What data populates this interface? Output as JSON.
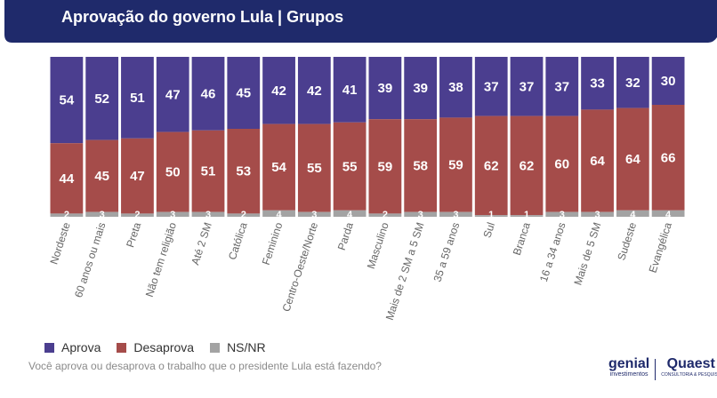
{
  "header": {
    "title": "Aprovação do governo Lula | Grupos"
  },
  "colors": {
    "aprova": "#4b3e8f",
    "desaprova": "#a54c4a",
    "nsnr": "#a3a3a3",
    "header": "#1f2a6b"
  },
  "chart_data": {
    "type": "bar",
    "stacked": true,
    "categories": [
      "Nordeste",
      "60 anos ou mais",
      "Preta",
      "Não tem religião",
      "Até 2 SM",
      "Católica",
      "Feminino",
      "Centro-Oeste/Norte",
      "Parda",
      "Masculino",
      "Mais de 2 SM a 5 SM",
      "35 a 59 anos",
      "Sul",
      "Branca",
      "16 a 34 anos",
      "Mais de 5 SM",
      "Sudeste",
      "Evangélica"
    ],
    "series": [
      {
        "name": "Aprova",
        "values": [
          54,
          52,
          51,
          47,
          46,
          45,
          42,
          42,
          41,
          39,
          39,
          38,
          37,
          37,
          37,
          33,
          32,
          30
        ]
      },
      {
        "name": "Desaprova",
        "values": [
          44,
          45,
          47,
          50,
          51,
          53,
          54,
          55,
          55,
          59,
          58,
          59,
          62,
          62,
          60,
          64,
          64,
          66
        ]
      },
      {
        "name": "NS/NR",
        "values": [
          2,
          3,
          2,
          3,
          3,
          2,
          4,
          3,
          4,
          2,
          3,
          3,
          1,
          1,
          3,
          3,
          4,
          4
        ]
      }
    ],
    "ylim": [
      0,
      100
    ],
    "legend_position": "bottom-left"
  },
  "legend": {
    "items": [
      "Aprova",
      "Desaprova",
      "NS/NR"
    ]
  },
  "footer": {
    "question": "Você aprova ou desaprova o trabalho que o presidente Lula está fazendo?",
    "logo_genial": "genial",
    "logo_genial_sub": "investimentos",
    "logo_quaest": "Quaest",
    "logo_quaest_sub": "CONSULTORIA & PESQUISA"
  }
}
